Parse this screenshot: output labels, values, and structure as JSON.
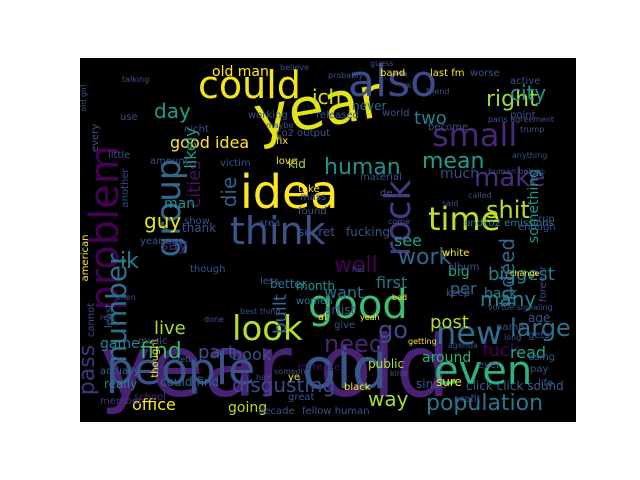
{
  "figure": {
    "background": "#ffffff",
    "panel_background": "#000000",
    "colormap": "viridis"
  },
  "words": [
    {
      "text": "year old",
      "color": "#482173"
    },
    {
      "text": "year",
      "color": "#e2e418"
    },
    {
      "text": "idea",
      "color": "#fde725"
    },
    {
      "text": "people",
      "color": "#3b528b"
    },
    {
      "text": "old",
      "color": "#39568c"
    },
    {
      "text": "could",
      "color": "#f1e51d"
    },
    {
      "text": "also",
      "color": "#3e4989"
    },
    {
      "text": "problem",
      "color": "#440154"
    },
    {
      "text": "group",
      "color": "#31688e"
    },
    {
      "text": "think",
      "color": "#3b528b"
    },
    {
      "text": "time",
      "color": "#c2df23"
    },
    {
      "text": "small",
      "color": "#482878"
    },
    {
      "text": "rock",
      "color": "#443983"
    },
    {
      "text": "make",
      "color": "#472d7b"
    },
    {
      "text": "even",
      "color": "#2db27d"
    },
    {
      "text": "good",
      "color": "#3fbc73"
    },
    {
      "text": "look",
      "color": "#b5de2b"
    },
    {
      "text": "new",
      "color": "#2e6f8e"
    },
    {
      "text": "number",
      "color": "#2c728e"
    },
    {
      "text": "shit",
      "color": "#b8de29"
    },
    {
      "text": "right",
      "color": "#a0da39"
    },
    {
      "text": "population",
      "color": "#2a788e"
    },
    {
      "text": "indeed",
      "color": "#31688e"
    },
    {
      "text": "large",
      "color": "#2c728e"
    },
    {
      "text": "need",
      "color": "#482475"
    },
    {
      "text": "find",
      "color": "#35b779"
    },
    {
      "text": "disgusting",
      "color": "#3e4989"
    },
    {
      "text": "pass",
      "color": "#46337e"
    },
    {
      "text": "work",
      "color": "#31688e"
    },
    {
      "text": "city",
      "color": "#1f968b"
    },
    {
      "text": "mean",
      "color": "#1f9e89"
    },
    {
      "text": "human",
      "color": "#21918c"
    },
    {
      "text": "ich",
      "color": "#d0e11c"
    },
    {
      "text": "two",
      "color": "#26828e"
    },
    {
      "text": "many",
      "color": "#25858e"
    },
    {
      "text": "well",
      "color": "#440154"
    },
    {
      "text": "go",
      "color": "#3e4a89"
    },
    {
      "text": "fuck",
      "color": "#440154"
    },
    {
      "text": "way",
      "color": "#a5db36"
    },
    {
      "text": "day",
      "color": "#1f9e89"
    },
    {
      "text": "good idea",
      "color": "#fde725"
    },
    {
      "text": "cities",
      "color": "#471063"
    },
    {
      "text": "die",
      "color": "#35608d"
    },
    {
      "text": "office",
      "color": "#fde725"
    },
    {
      "text": "old man",
      "color": "#fde725"
    },
    {
      "text": "live",
      "color": "#a8db34"
    },
    {
      "text": "post",
      "color": "#b5de2b"
    },
    {
      "text": "built",
      "color": "#31688e"
    },
    {
      "text": "want",
      "color": "#2c728e"
    },
    {
      "text": "likely",
      "color": "#1fa187"
    },
    {
      "text": "part",
      "color": "#3b528b"
    },
    {
      "text": "book",
      "color": "#3b528b"
    },
    {
      "text": "going",
      "color": "#b5de2b"
    },
    {
      "text": "read",
      "color": "#22a884"
    },
    {
      "text": "biggest",
      "color": "#26828e"
    },
    {
      "text": "see",
      "color": "#1fa187"
    },
    {
      "text": "guy",
      "color": "#e5e419"
    },
    {
      "text": "ik",
      "color": "#277f8e"
    },
    {
      "text": "first",
      "color": "#2a768e"
    },
    {
      "text": "per",
      "color": "#31688e"
    },
    {
      "text": "something",
      "color": "#1f968b"
    },
    {
      "text": "around",
      "color": "#2db27d"
    },
    {
      "text": "game",
      "color": "#26828e"
    },
    {
      "text": "say",
      "color": "#482878"
    },
    {
      "text": "back",
      "color": "#2a788e"
    },
    {
      "text": "big",
      "color": "#22a884"
    },
    {
      "text": "man",
      "color": "#21918c"
    },
    {
      "text": "much",
      "color": "#3e4989"
    },
    {
      "text": "undco2 emissions",
      "color": "#26828e"
    },
    {
      "text": "forever",
      "color": "#3e4989"
    },
    {
      "text": "click click sound",
      "color": "#35608d"
    },
    {
      "text": "could find",
      "color": "#31688e"
    },
    {
      "text": "since",
      "color": "#3b528b"
    },
    {
      "text": "sure",
      "color": "#fde725"
    },
    {
      "text": "really",
      "color": "#26828e"
    },
    {
      "text": "increase",
      "color": "#471063"
    },
    {
      "text": "black",
      "color": "#fde725"
    },
    {
      "text": "better",
      "color": "#2a788e"
    },
    {
      "text": "month",
      "color": "#1f968b"
    },
    {
      "text": "women",
      "color": "#2a788e"
    },
    {
      "text": "artist",
      "color": "#3b528b"
    },
    {
      "text": "school",
      "color": "#482878"
    },
    {
      "text": "member",
      "color": "#46337e"
    },
    {
      "text": "cannot",
      "color": "#3e4989"
    },
    {
      "text": "least",
      "color": "#35608d"
    },
    {
      "text": "actually",
      "color": "#31688e"
    },
    {
      "text": "profit",
      "color": "#3b528b"
    },
    {
      "text": "ever",
      "color": "#3b528b"
    },
    {
      "text": "public",
      "color": "#b5de2b"
    },
    {
      "text": "thank",
      "color": "#3b528b"
    },
    {
      "text": "kid",
      "color": "#a0da39"
    },
    {
      "text": "victim",
      "color": "#3b528b"
    },
    {
      "text": "take",
      "color": "#fde725"
    },
    {
      "text": "fix",
      "color": "#fde725"
    },
    {
      "text": "love",
      "color": "#fde725"
    },
    {
      "text": "mass",
      "color": "#3b528b"
    },
    {
      "text": "found",
      "color": "#3b528b"
    },
    {
      "text": "another",
      "color": "#3e4989"
    },
    {
      "text": "amount",
      "color": "#3b528b"
    },
    {
      "text": "material",
      "color": "#3b528b"
    },
    {
      "text": "working",
      "color": "#3b528b"
    },
    {
      "text": "co2 output",
      "color": "#3b528b"
    },
    {
      "text": "released",
      "color": "#3b528b"
    },
    {
      "text": "never",
      "color": "#31688e"
    },
    {
      "text": "world",
      "color": "#3b528b"
    },
    {
      "text": "become",
      "color": "#3b528b"
    },
    {
      "text": "band",
      "color": "#fde725"
    },
    {
      "text": "last fm",
      "color": "#fde725"
    },
    {
      "text": "worse",
      "color": "#3b528b"
    },
    {
      "text": "active",
      "color": "#3b528b"
    },
    {
      "text": "point",
      "color": "#3b528b"
    },
    {
      "text": "guess",
      "color": "#3b528b"
    },
    {
      "text": "friend",
      "color": "#3b528b"
    },
    {
      "text": "trump",
      "color": "#3b528b"
    },
    {
      "text": "every",
      "color": "#3b528b"
    },
    {
      "text": "little",
      "color": "#3b528b"
    },
    {
      "text": "use",
      "color": "#3b528b"
    },
    {
      "text": "nicht",
      "color": "#3b528b"
    },
    {
      "text": "de",
      "color": "#3b528b"
    },
    {
      "text": "come",
      "color": "#3b528b"
    },
    {
      "text": "run",
      "color": "#3b528b"
    },
    {
      "text": "enough",
      "color": "#3b528b"
    },
    {
      "text": "age",
      "color": "#3b528b"
    },
    {
      "text": "gets",
      "color": "#3b528b"
    },
    {
      "text": "using",
      "color": "#3b528b"
    },
    {
      "text": "pay",
      "color": "#3b528b"
    },
    {
      "text": "life",
      "color": "#3b528b"
    },
    {
      "text": "change",
      "color": "#fde725"
    },
    {
      "text": "long",
      "color": "#3b528b"
    },
    {
      "text": "album",
      "color": "#3b528b"
    },
    {
      "text": "keep",
      "color": "#3b528b"
    },
    {
      "text": "white",
      "color": "#fde725"
    },
    {
      "text": "secret",
      "color": "#3b528b"
    },
    {
      "text": "fucking",
      "color": "#3b528b"
    },
    {
      "text": "area",
      "color": "#3b528b"
    },
    {
      "text": "american",
      "color": "#fde725"
    },
    {
      "text": "year ago",
      "color": "#3b528b"
    },
    {
      "text": "show",
      "color": "#3b528b"
    },
    {
      "text": "thought",
      "color": "#fde725"
    },
    {
      "text": "though",
      "color": "#3b528b"
    },
    {
      "text": "less",
      "color": "#3b528b"
    },
    {
      "text": "give",
      "color": "#3b528b"
    },
    {
      "text": "al",
      "color": "#fde725"
    },
    {
      "text": "music",
      "color": "#3b528b"
    },
    {
      "text": "ye",
      "color": "#fde725"
    },
    {
      "text": "great",
      "color": "#3b528b"
    },
    {
      "text": "decade",
      "color": "#3b528b"
    },
    {
      "text": "fellow human",
      "color": "#3b528b"
    },
    {
      "text": "agenda",
      "color": "#3b528b"
    },
    {
      "text": "vortue signaling",
      "color": "#3b528b"
    },
    {
      "text": "paris agreement",
      "color": "#3b528b"
    },
    {
      "text": "human beings",
      "color": "#3b528b"
    },
    {
      "text": "anything",
      "color": "#3b528b"
    },
    {
      "text": "old girl",
      "color": "#3b528b"
    },
    {
      "text": "bad",
      "color": "#fde725"
    },
    {
      "text": "het",
      "color": "#3b528b"
    },
    {
      "text": "yeah",
      "color": "#fde725"
    },
    {
      "text": "name",
      "color": "#3b528b"
    },
    {
      "text": "getting",
      "color": "#fde725"
    },
    {
      "text": "best thing",
      "color": "#3b528b"
    },
    {
      "text": "pretty",
      "color": "#3b528b"
    },
    {
      "text": "done",
      "color": "#3b528b"
    },
    {
      "text": "hair",
      "color": "#3b528b"
    },
    {
      "text": "someone",
      "color": "#3b528b"
    },
    {
      "text": "kind",
      "color": "#3b528b"
    },
    {
      "text": "real",
      "color": "#3b528b"
    },
    {
      "text": "men",
      "color": "#3b528b"
    },
    {
      "text": "talking",
      "color": "#3b528b"
    },
    {
      "text": "probably",
      "color": "#3b528b"
    },
    {
      "text": "called",
      "color": "#3b528b"
    },
    {
      "text": "said",
      "color": "#3b528b"
    },
    {
      "text": "maybe",
      "color": "#3b528b"
    },
    {
      "text": "believe",
      "color": "#3b528b"
    },
    {
      "text": "ok",
      "color": "#3b528b"
    }
  ]
}
